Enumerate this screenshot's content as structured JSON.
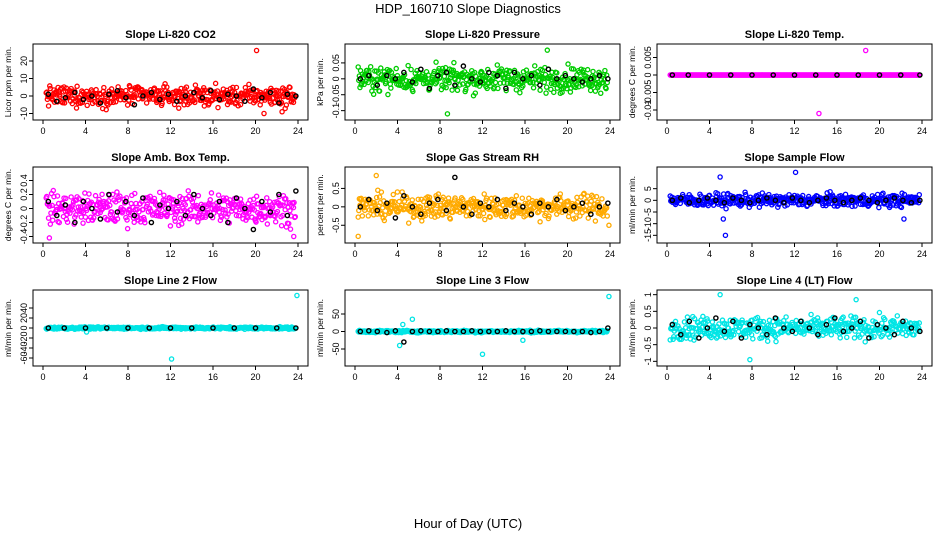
{
  "page": {
    "title": "HDP_160710  Slope Diagnostics",
    "xlabel": "Hour of Day (UTC)"
  },
  "chart_data": [
    {
      "type": "scatter",
      "title": "Slope Li-820 CO2",
      "ylabel": "Licor ppm per min.",
      "color": "#ff0000",
      "xlim": [
        0,
        24
      ],
      "ylim": [
        -12,
        28
      ],
      "yticks": [
        -10,
        0,
        10,
        20
      ],
      "xticks": [
        0,
        4,
        8,
        12,
        16,
        20,
        24
      ],
      "base": 0,
      "spread": 5,
      "mean_points": [
        [
          0.5,
          1
        ],
        [
          1.3,
          -3
        ],
        [
          2.1,
          -1
        ],
        [
          3.0,
          2
        ],
        [
          3.8,
          -2
        ],
        [
          4.6,
          0
        ],
        [
          5.4,
          -4
        ],
        [
          6.2,
          1
        ],
        [
          7.0,
          3
        ],
        [
          7.8,
          -1
        ],
        [
          8.6,
          -5
        ],
        [
          9.4,
          0
        ],
        [
          10.2,
          2
        ],
        [
          11.0,
          -2
        ],
        [
          11.8,
          1
        ],
        [
          12.6,
          -3
        ],
        [
          13.4,
          0
        ],
        [
          14.2,
          2
        ],
        [
          15.0,
          -1
        ],
        [
          15.8,
          3
        ],
        [
          16.6,
          -2
        ],
        [
          17.4,
          1
        ],
        [
          18.2,
          0
        ],
        [
          19.0,
          -3
        ],
        [
          19.8,
          4
        ],
        [
          20.6,
          -1
        ],
        [
          21.4,
          2
        ],
        [
          22.2,
          -4
        ],
        [
          23.0,
          1
        ],
        [
          23.8,
          0
        ]
      ],
      "outliers": [
        [
          20.1,
          26
        ],
        [
          20.8,
          -10
        ],
        [
          22.5,
          -9
        ]
      ]
    },
    {
      "type": "scatter",
      "title": "Slope Li-820 Pressure",
      "ylabel": "kPa per min.",
      "color": "#00cc00",
      "xlim": [
        0,
        24
      ],
      "ylim": [
        -0.12,
        0.1
      ],
      "yticks": [
        -0.1,
        -0.05,
        0,
        0.05
      ],
      "xticks": [
        0,
        4,
        8,
        12,
        16,
        20,
        24
      ],
      "base": 0,
      "spread": 0.035,
      "mean_points": [
        [
          0.5,
          0
        ],
        [
          1.3,
          0.01
        ],
        [
          2.1,
          -0.02
        ],
        [
          3.0,
          0.01
        ],
        [
          3.8,
          0
        ],
        [
          4.6,
          0.02
        ],
        [
          5.4,
          -0.01
        ],
        [
          6.2,
          0.03
        ],
        [
          7.0,
          -0.03
        ],
        [
          7.8,
          0.01
        ],
        [
          8.6,
          0.02
        ],
        [
          9.4,
          -0.02
        ],
        [
          10.2,
          0.04
        ],
        [
          11.0,
          0
        ],
        [
          11.8,
          -0.01
        ],
        [
          12.6,
          0.02
        ],
        [
          13.4,
          0.01
        ],
        [
          14.2,
          -0.03
        ],
        [
          15.0,
          0.02
        ],
        [
          15.8,
          0
        ],
        [
          16.6,
          0.01
        ],
        [
          17.4,
          -0.02
        ],
        [
          18.2,
          0.03
        ],
        [
          19.0,
          0
        ],
        [
          19.8,
          0.01
        ],
        [
          20.6,
          0
        ],
        [
          21.4,
          -0.01
        ],
        [
          22.2,
          0
        ],
        [
          23.0,
          0.01
        ],
        [
          23.8,
          0
        ]
      ],
      "outliers": [
        [
          8.7,
          -0.11
        ],
        [
          18.1,
          0.09
        ]
      ]
    },
    {
      "type": "scatter",
      "title": "Slope Li-820 Temp.",
      "ylabel": "degrees C per min.",
      "color": "#ff00ff",
      "xlim": [
        0,
        24
      ],
      "ylim": [
        -0.012,
        0.008
      ],
      "yticks": [
        -0.01,
        -0.005,
        0,
        0.005
      ],
      "xticks": [
        0,
        4,
        8,
        12,
        16,
        20,
        24
      ],
      "base": 0,
      "spread": 0,
      "mean_points": [
        [
          0.5,
          0
        ],
        [
          2,
          0
        ],
        [
          4,
          0
        ],
        [
          6,
          0
        ],
        [
          8,
          0
        ],
        [
          10,
          0
        ],
        [
          12,
          0
        ],
        [
          14,
          0
        ],
        [
          16,
          0
        ],
        [
          18,
          0
        ],
        [
          20,
          0
        ],
        [
          22,
          0
        ],
        [
          23.8,
          0
        ]
      ],
      "outliers": [
        [
          14.3,
          -0.011
        ],
        [
          18.7,
          0.007
        ]
      ]
    },
    {
      "type": "scatter",
      "title": "Slope Amb. Box Temp.",
      "ylabel": "degrees C per min.",
      "color": "#ff00ff",
      "xlim": [
        0,
        24
      ],
      "ylim": [
        -0.45,
        0.55
      ],
      "yticks": [
        -0.4,
        -0.2,
        0,
        0.2,
        0.4
      ],
      "xticks": [
        0,
        4,
        8,
        12,
        16,
        20,
        24
      ],
      "base": 0,
      "spread": 0.2,
      "mean_points": [
        [
          0.5,
          0.1
        ],
        [
          1.3,
          -0.1
        ],
        [
          2.1,
          0.05
        ],
        [
          3.0,
          -0.2
        ],
        [
          3.8,
          0.1
        ],
        [
          4.6,
          0
        ],
        [
          5.4,
          -0.15
        ],
        [
          6.2,
          0.2
        ],
        [
          7.0,
          -0.05
        ],
        [
          7.8,
          0.1
        ],
        [
          8.6,
          -0.1
        ],
        [
          9.4,
          0.15
        ],
        [
          10.2,
          -0.2
        ],
        [
          11.0,
          0.05
        ],
        [
          11.8,
          0
        ],
        [
          12.6,
          0.1
        ],
        [
          13.4,
          -0.1
        ],
        [
          14.2,
          0.2
        ],
        [
          15.0,
          0
        ],
        [
          15.8,
          -0.1
        ],
        [
          16.6,
          0.1
        ],
        [
          17.4,
          -0.2
        ],
        [
          18.2,
          0.15
        ],
        [
          19.0,
          0
        ],
        [
          19.8,
          -0.3
        ],
        [
          20.6,
          0.1
        ],
        [
          21.4,
          -0.05
        ],
        [
          22.2,
          0.2
        ],
        [
          23.0,
          -0.1
        ],
        [
          23.8,
          0.25
        ]
      ],
      "outliers": [
        [
          0.6,
          -0.42
        ],
        [
          23.6,
          -0.4
        ]
      ]
    },
    {
      "type": "scatter",
      "title": "Slope Gas Stream RH",
      "ylabel": "percent per min.",
      "color": "#ffaa00",
      "xlim": [
        0,
        24
      ],
      "ylim": [
        -0.9,
        1.0
      ],
      "yticks": [
        -0.5,
        0,
        0.5
      ],
      "xticks": [
        0,
        4,
        8,
        12,
        16,
        20,
        24
      ],
      "base": 0,
      "spread": 0.3,
      "mean_points": [
        [
          0.5,
          0
        ],
        [
          1.3,
          0.2
        ],
        [
          2.1,
          -0.1
        ],
        [
          3.0,
          0.1
        ],
        [
          3.8,
          -0.3
        ],
        [
          4.6,
          0.3
        ],
        [
          5.4,
          0
        ],
        [
          6.2,
          -0.2
        ],
        [
          7.0,
          0.1
        ],
        [
          7.8,
          0.2
        ],
        [
          8.6,
          -0.1
        ],
        [
          9.4,
          0.8
        ],
        [
          10.2,
          0
        ],
        [
          11.0,
          -0.2
        ],
        [
          11.8,
          0.1
        ],
        [
          12.6,
          0
        ],
        [
          13.4,
          0.2
        ],
        [
          14.2,
          -0.1
        ],
        [
          15.0,
          0.1
        ],
        [
          15.8,
          0
        ],
        [
          16.6,
          -0.2
        ],
        [
          17.4,
          0.1
        ],
        [
          18.2,
          0
        ],
        [
          19.0,
          0.2
        ],
        [
          19.8,
          -0.1
        ],
        [
          20.6,
          0
        ],
        [
          21.4,
          0.1
        ],
        [
          22.2,
          -0.2
        ],
        [
          23.0,
          0
        ],
        [
          23.8,
          0.1
        ]
      ],
      "outliers": [
        [
          0.3,
          -0.8
        ],
        [
          2.0,
          0.85
        ],
        [
          23.9,
          -0.5
        ]
      ]
    },
    {
      "type": "scatter",
      "title": "Slope Sample Flow",
      "ylabel": "ml/min per min.",
      "color": "#0000ff",
      "xlim": [
        0,
        24
      ],
      "ylim": [
        -17,
        13
      ],
      "yticks": [
        -15,
        -10,
        -5,
        0,
        5
      ],
      "xticks": [
        0,
        4,
        8,
        12,
        16,
        20,
        24
      ],
      "base": 0,
      "spread": 2.5,
      "mean_points": [
        [
          0.5,
          0
        ],
        [
          1.3,
          1
        ],
        [
          2.1,
          -1
        ],
        [
          3.0,
          0
        ],
        [
          3.8,
          1
        ],
        [
          4.6,
          0
        ],
        [
          5.4,
          -1
        ],
        [
          6.2,
          1
        ],
        [
          7.0,
          0
        ],
        [
          7.8,
          -1
        ],
        [
          8.6,
          0
        ],
        [
          9.4,
          1
        ],
        [
          10.2,
          0
        ],
        [
          11.0,
          -1
        ],
        [
          11.8,
          1
        ],
        [
          12.6,
          0
        ],
        [
          13.4,
          -1
        ],
        [
          14.2,
          0
        ],
        [
          15.0,
          1
        ],
        [
          15.8,
          0
        ],
        [
          16.6,
          -1
        ],
        [
          17.4,
          0
        ],
        [
          18.2,
          1
        ],
        [
          19.0,
          0
        ],
        [
          19.8,
          -1
        ],
        [
          20.6,
          0
        ],
        [
          21.4,
          1
        ],
        [
          22.2,
          0
        ],
        [
          23.0,
          -1
        ],
        [
          23.8,
          0
        ]
      ],
      "outliers": [
        [
          5.0,
          10
        ],
        [
          5.3,
          -8
        ],
        [
          5.5,
          -15
        ],
        [
          12.1,
          12
        ],
        [
          22.3,
          -8
        ]
      ]
    },
    {
      "type": "scatter",
      "title": "Slope Line 2 Flow",
      "ylabel": "ml/min per min.",
      "color": "#00e5e5",
      "xlim": [
        0,
        24
      ],
      "ylim": [
        -70,
        70
      ],
      "yticks": [
        -60,
        -40,
        -20,
        0,
        20,
        40
      ],
      "xticks": [
        0,
        4,
        8,
        12,
        16,
        20,
        24
      ],
      "base": 0,
      "spread": 2,
      "mean_points": [
        [
          0.5,
          0
        ],
        [
          2,
          0
        ],
        [
          4,
          0
        ],
        [
          6,
          0
        ],
        [
          8,
          0
        ],
        [
          10,
          0
        ],
        [
          12,
          0
        ],
        [
          14,
          0
        ],
        [
          16,
          0
        ],
        [
          18,
          0
        ],
        [
          20,
          0
        ],
        [
          22,
          0
        ],
        [
          23.8,
          0
        ]
      ],
      "outliers": [
        [
          4.1,
          -8
        ],
        [
          12.1,
          -62
        ],
        [
          23.9,
          65
        ]
      ]
    },
    {
      "type": "scatter",
      "title": "Slope Line 3 Flow",
      "ylabel": "ml/min per min.",
      "color": "#00e5e5",
      "xlim": [
        0,
        24
      ],
      "ylim": [
        -90,
        110
      ],
      "yticks": [
        -50,
        0,
        50
      ],
      "xticks": [
        0,
        4,
        8,
        12,
        16,
        20,
        24
      ],
      "base": 0,
      "spread": 3,
      "mean_points": [
        [
          0.5,
          0
        ],
        [
          1.3,
          2
        ],
        [
          2.1,
          0
        ],
        [
          3.0,
          -3
        ],
        [
          3.8,
          2
        ],
        [
          4.6,
          -30
        ],
        [
          5.4,
          0
        ],
        [
          6.2,
          2
        ],
        [
          7.0,
          0
        ],
        [
          7.8,
          0
        ],
        [
          8.6,
          2
        ],
        [
          9.4,
          0
        ],
        [
          10.2,
          0
        ],
        [
          11.0,
          2
        ],
        [
          11.8,
          0
        ],
        [
          12.6,
          0
        ],
        [
          13.4,
          0
        ],
        [
          14.2,
          2
        ],
        [
          15.0,
          0
        ],
        [
          15.8,
          0
        ],
        [
          16.6,
          0
        ],
        [
          17.4,
          2
        ],
        [
          18.2,
          0
        ],
        [
          19.0,
          0
        ],
        [
          19.8,
          0
        ],
        [
          20.6,
          0
        ],
        [
          21.4,
          0
        ],
        [
          22.2,
          -3
        ],
        [
          23.0,
          0
        ],
        [
          23.8,
          10
        ]
      ],
      "outliers": [
        [
          4.2,
          -40
        ],
        [
          4.5,
          20
        ],
        [
          5.4,
          35
        ],
        [
          12.0,
          -65
        ],
        [
          15.8,
          -25
        ],
        [
          23.9,
          100
        ]
      ]
    },
    {
      "type": "scatter",
      "title": "Slope Line 4 (LT) Flow",
      "ylabel": "ml/min per min.",
      "color": "#00e5e5",
      "xlim": [
        0,
        24
      ],
      "ylim": [
        -1.05,
        1.05
      ],
      "yticks": [
        -1,
        -0.5,
        0,
        0.5,
        1
      ],
      "xticks": [
        0,
        4,
        8,
        12,
        16,
        20,
        24
      ],
      "base": 0,
      "spread": 0.3,
      "mean_points": [
        [
          0.5,
          0.1
        ],
        [
          1.3,
          -0.2
        ],
        [
          2.1,
          0.2
        ],
        [
          3.0,
          -0.3
        ],
        [
          3.8,
          0
        ],
        [
          4.6,
          0.3
        ],
        [
          5.4,
          -0.1
        ],
        [
          6.2,
          0.2
        ],
        [
          7.0,
          -0.3
        ],
        [
          7.8,
          0.1
        ],
        [
          8.6,
          0
        ],
        [
          9.4,
          -0.2
        ],
        [
          10.2,
          0.3
        ],
        [
          11.0,
          0
        ],
        [
          11.8,
          -0.1
        ],
        [
          12.6,
          0.2
        ],
        [
          13.4,
          0
        ],
        [
          14.2,
          -0.2
        ],
        [
          15.0,
          0.1
        ],
        [
          15.8,
          0.3
        ],
        [
          16.6,
          -0.1
        ],
        [
          17.4,
          0
        ],
        [
          18.2,
          0.2
        ],
        [
          19.0,
          -0.3
        ],
        [
          19.8,
          0.1
        ],
        [
          20.6,
          0
        ],
        [
          21.4,
          -0.2
        ],
        [
          22.2,
          0.2
        ],
        [
          23.0,
          0
        ],
        [
          23.8,
          -0.1
        ]
      ],
      "outliers": [
        [
          5.0,
          1.0
        ],
        [
          7.8,
          -0.95
        ],
        [
          17.8,
          0.85
        ]
      ]
    }
  ]
}
